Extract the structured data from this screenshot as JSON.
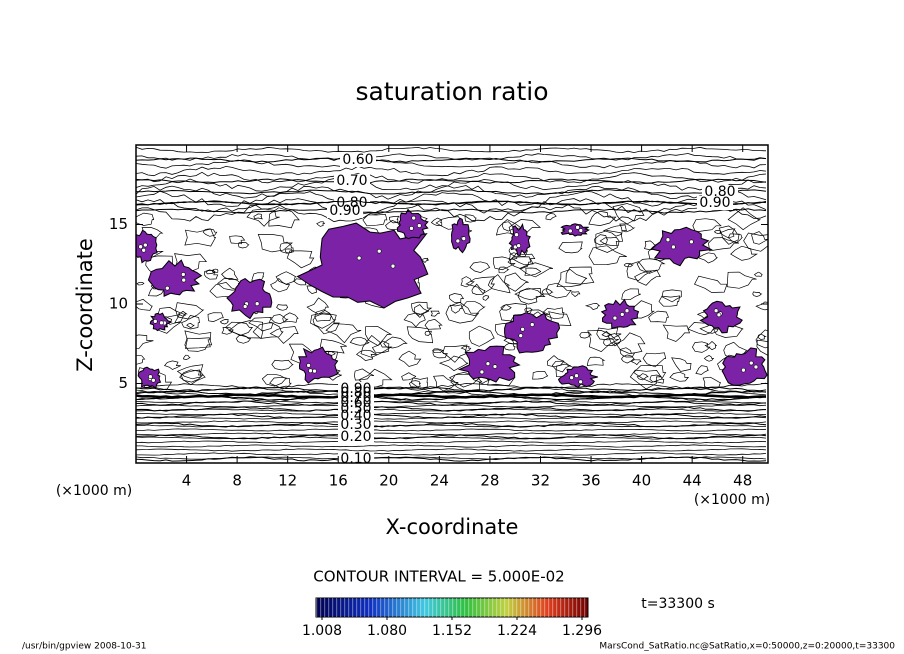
{
  "chart_data": {
    "type": "contour",
    "title": "saturation ratio",
    "x_label": "X-coordinate",
    "y_label": "Z-coordinate",
    "x_unit": "(×1000 m)",
    "y_unit": "(×1000 m)",
    "xlim": [
      0,
      50
    ],
    "xticks": [
      4,
      8,
      12,
      16,
      20,
      24,
      28,
      32,
      36,
      40,
      44,
      48
    ],
    "ylim": [
      0,
      20
    ],
    "yticks": [
      5,
      10,
      15
    ],
    "levels": [
      {
        "value": 0.1,
        "label": "0.10"
      },
      {
        "value": 0.2,
        "label": "0.20"
      },
      {
        "value": 0.3,
        "label": "0.30"
      },
      {
        "value": 0.4,
        "label": "0.40"
      },
      {
        "value": 0.5,
        "label": "0.50"
      },
      {
        "value": 0.6,
        "label": "0.60"
      },
      {
        "value": 0.7,
        "label": "0.70"
      },
      {
        "value": 0.8,
        "label": "0.80"
      },
      {
        "value": 0.9,
        "label": "0.90"
      }
    ],
    "contour_interval": "CONTOUR INTERVAL = 5.000E-02",
    "time_label": "t=33300 s",
    "fill_color": "#7b22a6",
    "clim": [
      1.008,
      1.296
    ],
    "colorbar_ticks": [
      {
        "value": 1.008,
        "label": "1.008"
      },
      {
        "value": 1.08,
        "label": "1.080"
      },
      {
        "value": 1.152,
        "label": "1.152"
      },
      {
        "value": 1.224,
        "label": "1.224"
      },
      {
        "value": 1.296,
        "label": "1.296"
      }
    ],
    "footer_left": "/usr/bin/gpview   2008-10-31",
    "footer_right": "MarsCond_SatRatio.nc@SatRatio,x=0:50000,z=0:20000,t=33300"
  }
}
